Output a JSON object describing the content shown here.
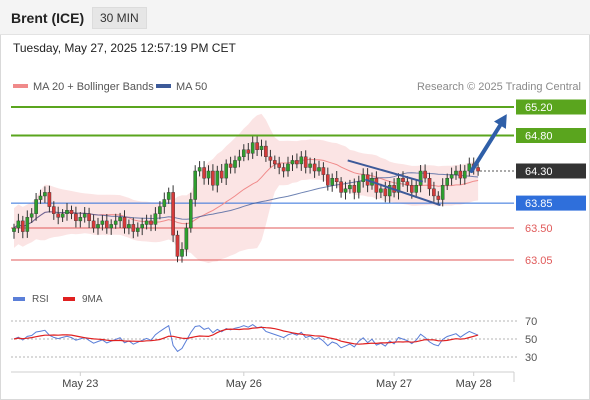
{
  "header": {
    "title": "Brent (ICE)",
    "timeframe": "30 MIN"
  },
  "datetime": "Tuesday, May 27, 2025 12:57:19 PM CET",
  "legend": {
    "ma20": {
      "label": "MA 20 + Bollinger Bands",
      "color": "#f08a8a"
    },
    "ma50": {
      "label": "MA 50",
      "color": "#3d5a99"
    }
  },
  "credit": "Research © 2025 Trading Central",
  "colors": {
    "green": "#5aa51e",
    "blue_level": "#2f6fdb",
    "red_level": "#e05a5a",
    "last_price": "#333333",
    "channel": "#3d5a99",
    "rsi": "#5b7fd8",
    "rsi_ma": "#e02020"
  },
  "chart_data": [
    {
      "type": "candlestick",
      "x_ticks": [
        "May 23",
        "May 26",
        "May 27",
        "May 28"
      ],
      "levels": [
        {
          "value": 65.2,
          "label": "65.20",
          "kind": "resistance"
        },
        {
          "value": 64.8,
          "label": "64.80",
          "kind": "resistance"
        },
        {
          "value": 64.3,
          "label": "64.30",
          "kind": "last"
        },
        {
          "value": 63.85,
          "label": "63.85",
          "kind": "pivot"
        },
        {
          "value": 63.5,
          "label": "63.50",
          "kind": "support"
        },
        {
          "value": 63.05,
          "label": "63.05",
          "kind": "support"
        }
      ],
      "closes": [
        63.5,
        63.6,
        63.45,
        63.65,
        63.7,
        63.9,
        63.95,
        64.0,
        63.8,
        63.7,
        63.65,
        63.7,
        63.75,
        63.7,
        63.6,
        63.65,
        63.7,
        63.6,
        63.5,
        63.55,
        63.6,
        63.5,
        63.55,
        63.6,
        63.65,
        63.5,
        63.55,
        63.45,
        63.5,
        63.55,
        63.6,
        63.55,
        63.7,
        63.8,
        63.9,
        64.0,
        63.4,
        63.1,
        63.2,
        63.5,
        63.9,
        64.3,
        64.35,
        64.2,
        64.3,
        64.1,
        64.3,
        64.2,
        64.4,
        64.35,
        64.45,
        64.5,
        64.6,
        64.55,
        64.7,
        64.6,
        64.65,
        64.5,
        64.45,
        64.4,
        64.35,
        64.3,
        64.4,
        64.45,
        64.4,
        64.5,
        64.35,
        64.4,
        64.3,
        64.35,
        64.25,
        64.1,
        64.2,
        64.15,
        64.0,
        64.05,
        64.1,
        64.0,
        64.15,
        64.25,
        64.1,
        64.2,
        64.0,
        64.05,
        63.95,
        64.1,
        64.0,
        64.2,
        64.15,
        64.1,
        64.0,
        64.1,
        64.3,
        64.2,
        64.05,
        63.95,
        63.9,
        64.1,
        64.2,
        64.25,
        64.3,
        64.2,
        64.3,
        64.4,
        64.35,
        64.3
      ],
      "channel": {
        "upper": [
          [
            75.5,
            64.45
          ],
          [
            92.5,
            64.15
          ]
        ],
        "lower": [
          [
            79.5,
            64.18
          ],
          [
            96.5,
            63.82
          ]
        ]
      },
      "forecast_arrow": [
        [
          103.5,
          64.3
        ],
        [
          111.5,
          65.1
        ]
      ],
      "yrange": [
        62.75,
        65.35
      ],
      "ma20_band_width": 0.28
    },
    {
      "type": "line",
      "legend": [
        {
          "label": "RSI",
          "color": "#5b7fd8"
        },
        {
          "label": "9MA",
          "color": "#e02020"
        }
      ],
      "y_ticks": [
        70,
        50,
        30
      ],
      "ylim": [
        20,
        80
      ]
    }
  ]
}
